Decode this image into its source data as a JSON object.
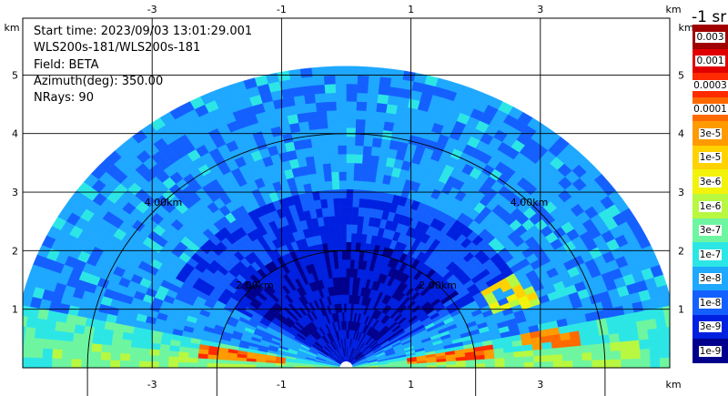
{
  "info": {
    "start_time": "Start time: 2023/09/03 13:01:29.001",
    "device": "WLS200s-181/WLS200s-181",
    "field": "Field: BETA",
    "azimuth": "Azimuth(deg): 350.00",
    "nrays": "NRays: 90"
  },
  "colorbar": {
    "title": "-1 sr",
    "levels": [
      {
        "label": "0.003",
        "color": "#a00000"
      },
      {
        "label": "0.001",
        "color": "#e00000"
      },
      {
        "label": "0.0003",
        "color": "#ff2a00"
      },
      {
        "label": "0.0001",
        "color": "#ff6a00"
      },
      {
        "label": "3e-5",
        "color": "#ff9a00"
      },
      {
        "label": "1e-5",
        "color": "#ffd200"
      },
      {
        "label": "3e-6",
        "color": "#f2f20a"
      },
      {
        "label": "1e-6",
        "color": "#b8f840"
      },
      {
        "label": "3e-7",
        "color": "#6ef5a0"
      },
      {
        "label": "1e-7",
        "color": "#2ce6e6"
      },
      {
        "label": "3e-8",
        "color": "#1ea8ff"
      },
      {
        "label": "1e-8",
        "color": "#1460ff"
      },
      {
        "label": "3e-9",
        "color": "#0020e0"
      },
      {
        "label": "1e-9",
        "color": "#00008c"
      }
    ]
  },
  "chart_data": {
    "type": "heatmap",
    "x_unit": "km",
    "y_unit": "km",
    "x_ticks": [
      -3,
      -1,
      1,
      3
    ],
    "x_tick_labels": [
      "-3",
      "-1",
      "1",
      "3"
    ],
    "y_ticks": [
      1,
      2,
      3,
      4,
      5
    ],
    "y_tick_labels": [
      "1",
      "2",
      "3",
      "4",
      "5"
    ],
    "xlim": [
      -5.0,
      5.0
    ],
    "ylim": [
      0,
      5.97
    ],
    "grid": true,
    "max_range_km": 5.1,
    "range_rings": [
      {
        "range_km": 2,
        "label": "2.00km"
      },
      {
        "range_km": 4,
        "label": "4.00km"
      }
    ],
    "scale": "log",
    "value_range": [
      1e-09,
      0.003
    ],
    "features": [
      {
        "description_range_km": [
          1.0,
          2.3
        ],
        "elevation_deg": [
          4,
          9
        ],
        "level": "0.0003",
        "azimuth_side": "central"
      },
      {
        "description_range_km": [
          2.4,
          3.2
        ],
        "elevation_deg": [
          20,
          32
        ],
        "level": "3e-6",
        "azimuth_side": "right"
      }
    ]
  }
}
